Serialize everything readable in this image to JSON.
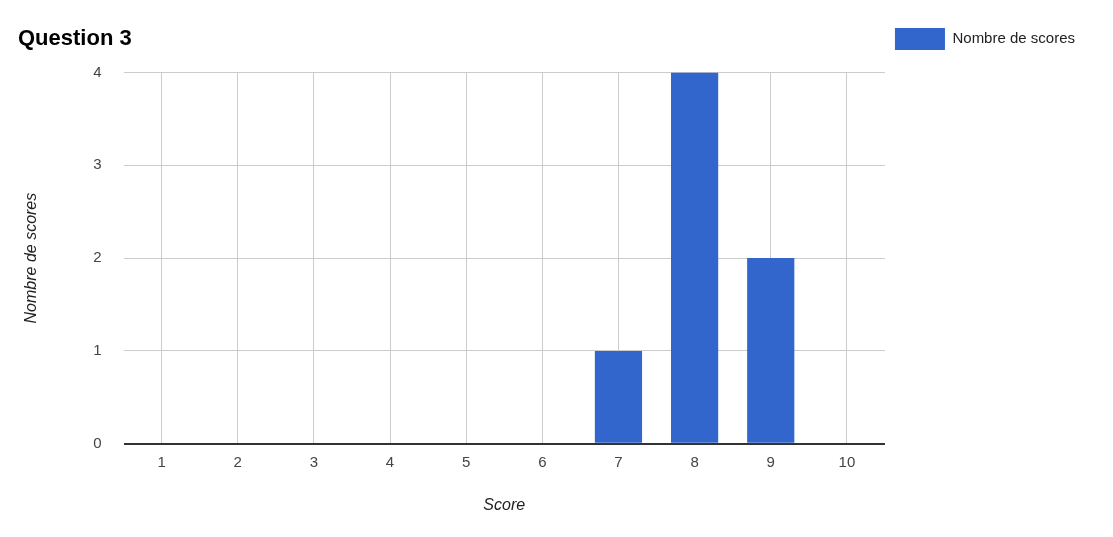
{
  "chart_data": {
    "type": "bar",
    "title": "Question 3",
    "xlabel": "Score",
    "ylabel": "Nombre de scores",
    "categories": [
      "1",
      "2",
      "3",
      "4",
      "5",
      "6",
      "7",
      "8",
      "9",
      "10"
    ],
    "series": [
      {
        "name": "Nombre de scores",
        "color": "#3366cc",
        "values": [
          0,
          0,
          0,
          0,
          0,
          0,
          1,
          4,
          2,
          0
        ]
      }
    ],
    "ylim": [
      0,
      4
    ],
    "yticks": [
      0,
      1,
      2,
      3,
      4
    ],
    "grid": true,
    "legend": "top right"
  }
}
